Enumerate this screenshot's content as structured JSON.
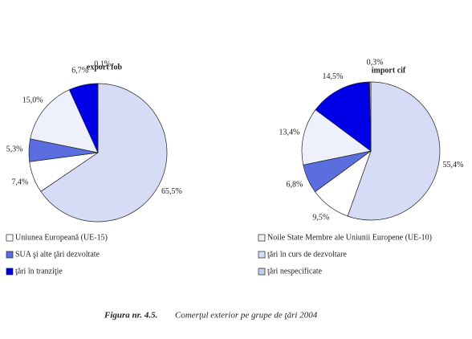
{
  "chart_data": [
    {
      "type": "pie",
      "title": "export fob",
      "values": [
        65.5,
        7.4,
        5.3,
        15.0,
        6.7,
        0.1
      ],
      "value_labels": [
        "65,5%",
        "7,4%",
        "5,3%",
        "15,0%",
        "6,7%",
        "0,1%"
      ],
      "colors": [
        "#d6dcf5",
        "#ffffff",
        "#5a6ee0",
        "#eef0fb",
        "#0000e6",
        "#c4ccf2"
      ]
    },
    {
      "type": "pie",
      "title": "import cif",
      "values": [
        55.4,
        9.5,
        6.8,
        13.4,
        14.5,
        0.3
      ],
      "value_labels": [
        "55,4%",
        "9,5%",
        "6,8%",
        "13,4%",
        "14,5%",
        "0,3%"
      ],
      "colors": [
        "#d6dcf5",
        "#ffffff",
        "#5a6ee0",
        "#eef0fb",
        "#0000e6",
        "#c4ccf2"
      ]
    }
  ],
  "legend": [
    {
      "label": "Uniunea Europeană (UE-15)",
      "color": "#ffffff"
    },
    {
      "label": "SUA şi alte ţări dezvoltate",
      "color": "#5a6ee0"
    },
    {
      "label": "ţări în tranziţie",
      "color": "#0000e6"
    },
    {
      "label": "Noile State Membre ale Uniunii Europene (UE-10)",
      "color": "#eef0fb"
    },
    {
      "label": "ţări în curs de dezvoltare",
      "color": "#d6dcf5"
    },
    {
      "label": "ţări nespecificate",
      "color": "#c4ccf2"
    }
  ],
  "caption": {
    "number": "Figura nr. 4.5.",
    "text": "Comerţul exterior pe grupe de ţări 2004"
  }
}
